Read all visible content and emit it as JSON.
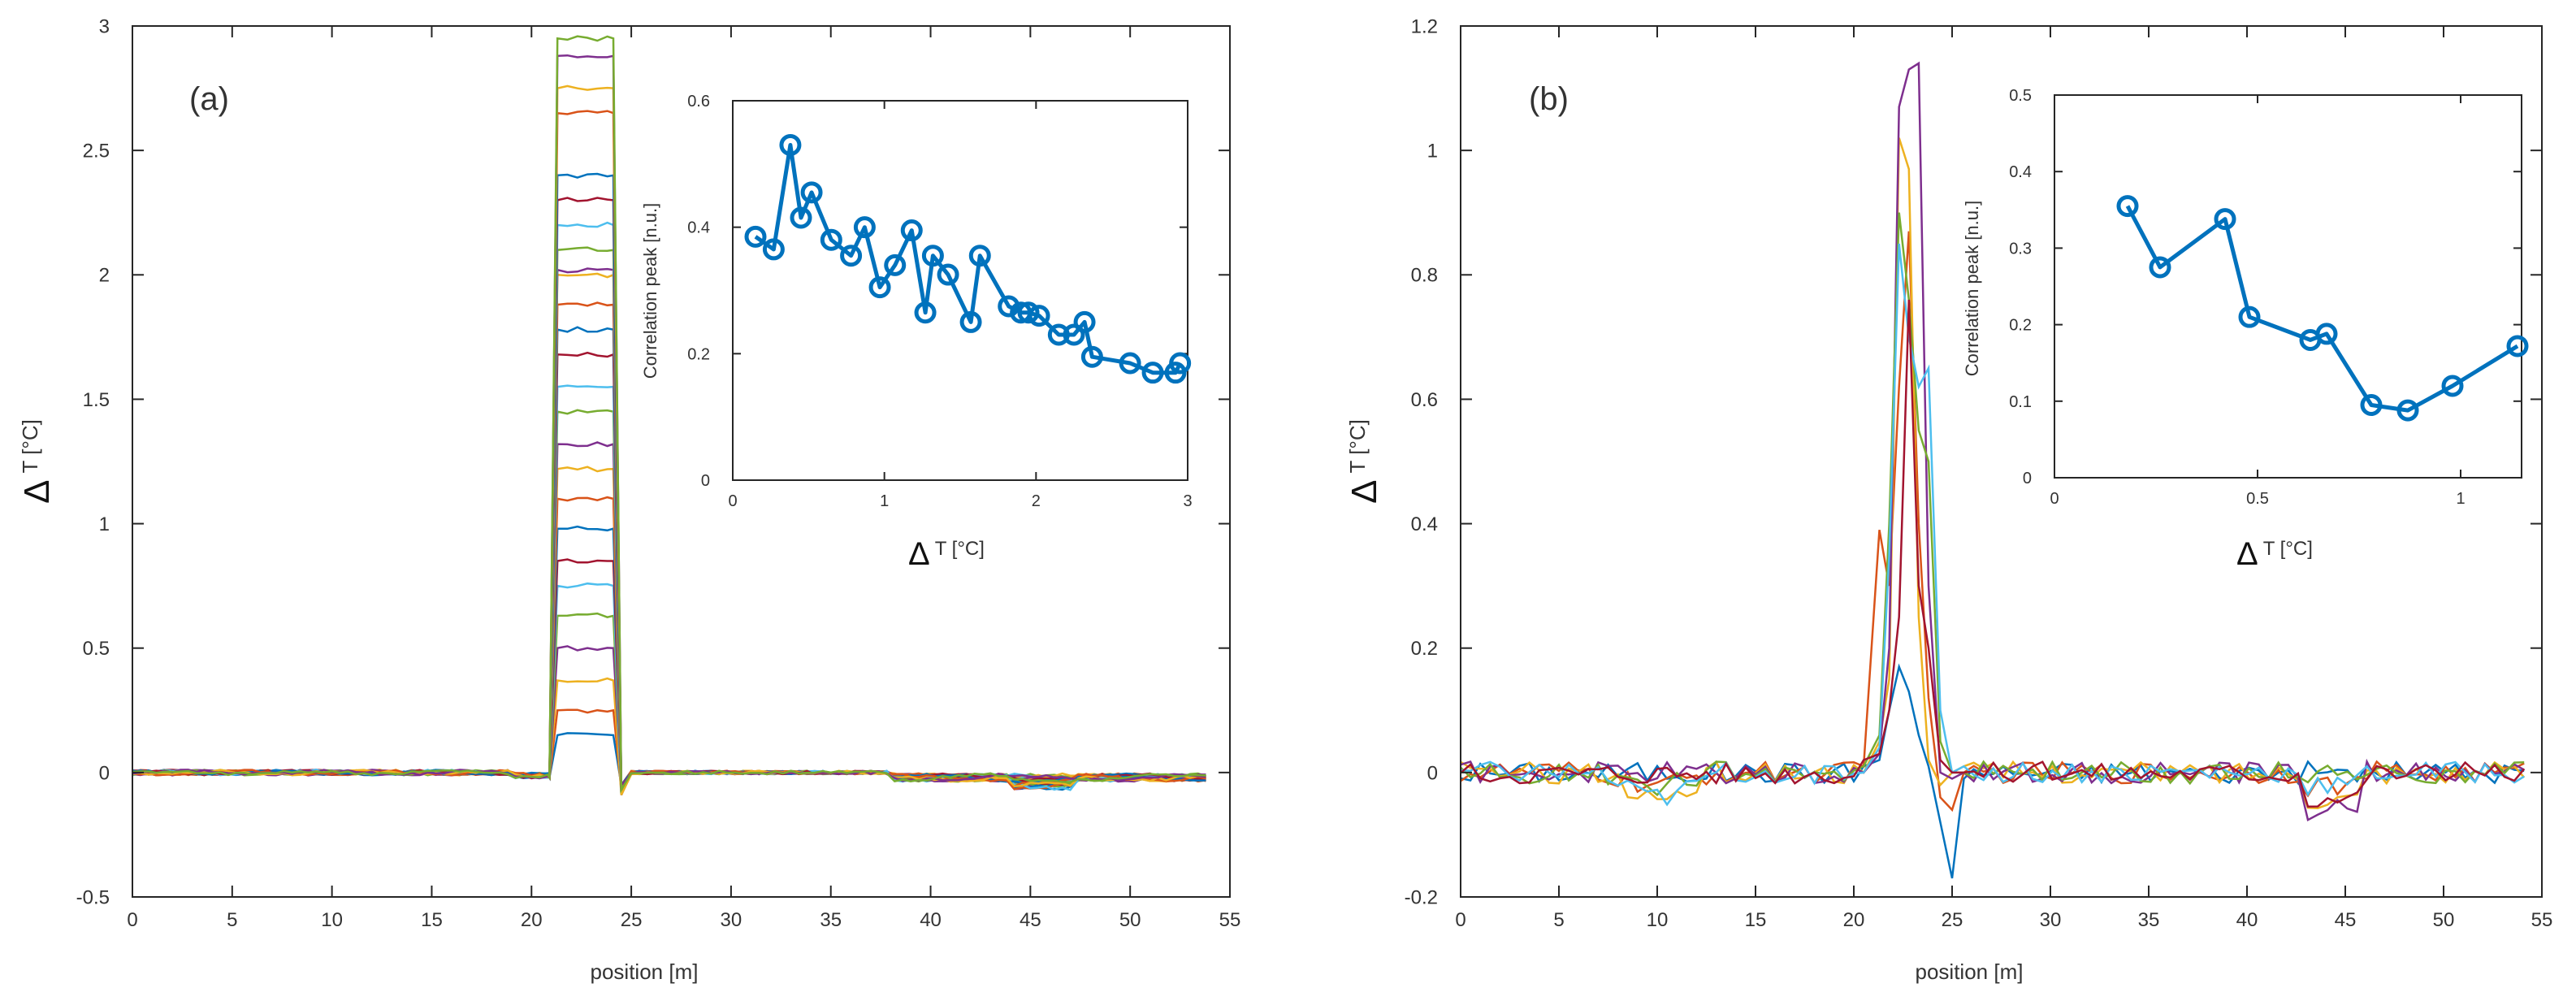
{
  "colors": {
    "series": [
      "#0072BD",
      "#D95319",
      "#EDB120",
      "#7E2F8E",
      "#77AC30",
      "#4DBEEE",
      "#A2142F"
    ],
    "inset": "#0072BD",
    "axis": "#262626"
  },
  "chart_data": [
    {
      "type": "line",
      "panel_label": "(a)",
      "xlabel": "position [m]",
      "ylabel_symbol": "Δ",
      "ylabel_unit": "T [°C]",
      "xlim": [
        0,
        55
      ],
      "ylim": [
        -0.5,
        3
      ],
      "xticks": [
        0,
        5,
        10,
        15,
        20,
        25,
        30,
        35,
        40,
        45,
        50,
        55
      ],
      "yticks": [
        -0.5,
        0,
        0.5,
        1,
        1.5,
        2,
        2.5,
        3
      ],
      "step_profile": {
        "x_rise_start": 20.9,
        "x_rise_end": 21.3,
        "x_fall_start": 24.1,
        "x_fall_end": 24.5,
        "x_end": 53.8
      },
      "step_peak_heights": [
        0.15,
        0.25,
        0.37,
        0.5,
        0.63,
        0.75,
        0.85,
        0.98,
        1.1,
        1.22,
        1.32,
        1.45,
        1.55,
        1.68,
        1.78,
        1.88,
        2.0,
        2.02,
        2.1,
        2.2,
        2.3,
        2.4,
        2.65,
        2.75,
        2.88,
        2.95
      ],
      "inset": {
        "type": "line",
        "ylabel": "Correlation peak  [n.u.]",
        "xlabel_symbol": "Δ",
        "xlabel_unit": "T [°C]",
        "xlim": [
          0,
          3
        ],
        "ylim": [
          0,
          0.6
        ],
        "xticks": [
          0,
          1,
          2,
          3
        ],
        "yticks": [
          0,
          0.2,
          0.4,
          0.6
        ],
        "x": [
          0.15,
          0.27,
          0.38,
          0.45,
          0.52,
          0.65,
          0.78,
          0.87,
          0.97,
          1.07,
          1.18,
          1.27,
          1.32,
          1.42,
          1.57,
          1.63,
          1.82,
          1.9,
          1.95,
          2.02,
          2.15,
          2.25,
          2.32,
          2.37,
          2.62,
          2.77,
          2.92,
          2.95
        ],
        "y": [
          0.385,
          0.365,
          0.53,
          0.415,
          0.455,
          0.38,
          0.355,
          0.4,
          0.305,
          0.34,
          0.395,
          0.265,
          0.355,
          0.325,
          0.25,
          0.355,
          0.275,
          0.265,
          0.265,
          0.26,
          0.23,
          0.23,
          0.25,
          0.195,
          0.185,
          0.17,
          0.17,
          0.185
        ]
      }
    },
    {
      "type": "line",
      "panel_label": "(b)",
      "xlabel": "position  [m]",
      "ylabel_symbol": "Δ",
      "ylabel_unit": "T [°C]",
      "xlim": [
        0,
        55
      ],
      "ylim": [
        -0.2,
        1.2
      ],
      "xticks": [
        0,
        5,
        10,
        15,
        20,
        25,
        30,
        35,
        40,
        45,
        50,
        55
      ],
      "yticks": [
        -0.2,
        0,
        0.2,
        0.4,
        0.6,
        0.8,
        1,
        1.2
      ],
      "peak_traces": [
        {
          "x": [
            20.5,
            21.3,
            21.8,
            22.3,
            22.8,
            23.3,
            23.8,
            24.4,
            25.0,
            25.6
          ],
          "y": [
            0.01,
            0.02,
            0.1,
            0.17,
            0.13,
            0.06,
            0.01,
            -0.08,
            -0.17,
            -0.01
          ]
        },
        {
          "x": [
            20.5,
            21.3,
            21.8,
            22.3,
            22.8,
            23.3,
            23.8,
            24.4,
            25.0,
            25.6
          ],
          "y": [
            0.01,
            0.39,
            0.3,
            0.62,
            0.87,
            0.4,
            0.12,
            -0.04,
            -0.06,
            0.0
          ]
        },
        {
          "x": [
            20.5,
            21.3,
            21.8,
            22.3,
            22.8,
            23.3,
            23.8,
            24.4,
            25.0,
            25.6
          ],
          "y": [
            0.0,
            0.05,
            0.15,
            1.02,
            0.97,
            0.25,
            0.02,
            -0.02,
            0.0,
            0.01
          ]
        },
        {
          "x": [
            20.5,
            21.3,
            21.8,
            22.3,
            22.8,
            23.3,
            23.8,
            24.4,
            25.0,
            25.6
          ],
          "y": [
            0.0,
            0.03,
            0.2,
            1.07,
            1.13,
            1.14,
            0.3,
            0.0,
            -0.01,
            0.0
          ]
        },
        {
          "x": [
            20.5,
            21.3,
            21.8,
            22.3,
            22.8,
            23.3,
            23.8,
            24.4,
            25.0,
            25.6
          ],
          "y": [
            0.01,
            0.06,
            0.4,
            0.9,
            0.76,
            0.55,
            0.5,
            0.05,
            0.0,
            0.0
          ]
        },
        {
          "x": [
            20.5,
            21.3,
            21.8,
            22.3,
            22.8,
            23.3,
            23.8,
            24.4,
            25.0,
            25.6
          ],
          "y": [
            0.0,
            0.04,
            0.35,
            0.85,
            0.7,
            0.62,
            0.65,
            0.1,
            0.0,
            0.01
          ]
        },
        {
          "x": [
            20.5,
            21.3,
            21.8,
            22.3,
            22.8,
            23.3,
            23.8,
            24.4,
            25.0,
            25.6
          ],
          "y": [
            0.02,
            0.03,
            0.1,
            0.25,
            0.76,
            0.3,
            0.2,
            0.02,
            0.0,
            0.0
          ]
        }
      ],
      "inset": {
        "type": "line",
        "ylabel": "Correlation peak  [n.u.]",
        "xlabel_symbol": "Δ",
        "xlabel_unit": "T [°C]",
        "xlim": [
          0,
          1.15
        ],
        "ylim": [
          0,
          0.5
        ],
        "xticks": [
          0,
          0.5,
          1
        ],
        "yticks": [
          0,
          0.1,
          0.2,
          0.3,
          0.4,
          0.5
        ],
        "x": [
          0.18,
          0.26,
          0.42,
          0.48,
          0.63,
          0.67,
          0.78,
          0.87,
          0.98,
          1.14
        ],
        "y": [
          0.355,
          0.275,
          0.338,
          0.21,
          0.18,
          0.188,
          0.095,
          0.088,
          0.12,
          0.172
        ]
      }
    }
  ]
}
